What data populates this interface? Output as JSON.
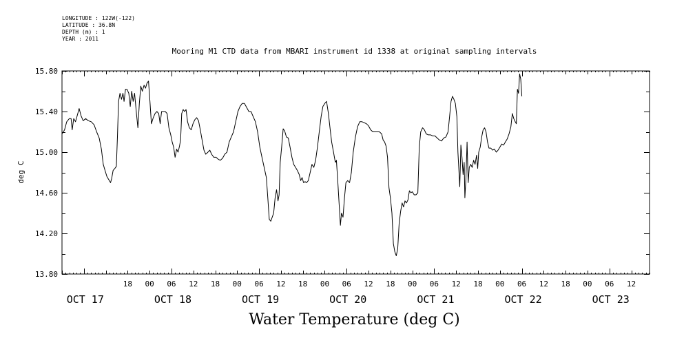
{
  "header": {
    "longitude": "LONGITUDE : 122W(-122)",
    "latitude": "LATITUDE : 36.8N",
    "depth": "DEPTH (m) : 1",
    "year": "YEAR : 2011"
  },
  "chart_data": {
    "type": "line",
    "title": "Mooring M1 CTD data from MBARI instrument id 1338 at original sampling intervals",
    "xlabel": "Water Temperature (deg C)",
    "ylabel": "deg C",
    "xlim_hours": [
      -6,
      155
    ],
    "ylim": [
      13.8,
      15.8
    ],
    "yticks": [
      13.8,
      14.2,
      14.6,
      15.0,
      15.4,
      15.8
    ],
    "yticklabels": [
      "13.80",
      "14.20",
      "14.60",
      "15.00",
      "15.40",
      "15.80"
    ],
    "hour_ticks": [
      {
        "h": 12,
        "label": "18"
      },
      {
        "h": 18,
        "label": "00"
      },
      {
        "h": 24,
        "label": "06"
      },
      {
        "h": 30,
        "label": "12"
      },
      {
        "h": 36,
        "label": "18"
      },
      {
        "h": 42,
        "label": "00"
      },
      {
        "h": 48,
        "label": "06"
      },
      {
        "h": 54,
        "label": "12"
      },
      {
        "h": 60,
        "label": "18"
      },
      {
        "h": 66,
        "label": "00"
      },
      {
        "h": 72,
        "label": "06"
      },
      {
        "h": 78,
        "label": "12"
      },
      {
        "h": 84,
        "label": "18"
      },
      {
        "h": 90,
        "label": "00"
      },
      {
        "h": 96,
        "label": "06"
      },
      {
        "h": 102,
        "label": "12"
      },
      {
        "h": 108,
        "label": "18"
      },
      {
        "h": 114,
        "label": "00"
      },
      {
        "h": 120,
        "label": "06"
      },
      {
        "h": 126,
        "label": "12"
      },
      {
        "h": 132,
        "label": "18"
      },
      {
        "h": 138,
        "label": "00"
      },
      {
        "h": 144,
        "label": "06"
      },
      {
        "h": 150,
        "label": "12"
      }
    ],
    "date_labels": [
      {
        "h": 0,
        "label": "OCT 17"
      },
      {
        "h": 24,
        "label": "OCT 18"
      },
      {
        "h": 48,
        "label": "OCT 19"
      },
      {
        "h": 72,
        "label": "OCT 20"
      },
      {
        "h": 96,
        "label": "OCT 21"
      },
      {
        "h": 120,
        "label": "OCT 22"
      },
      {
        "h": 144,
        "label": "OCT 23"
      }
    ],
    "series": [
      {
        "color": "#000000",
        "points": [
          [
            -6.0,
            15.18
          ],
          [
            -5.3,
            15.22
          ],
          [
            -4.7,
            15.3
          ],
          [
            -4.0,
            15.33
          ],
          [
            -3.5,
            15.33
          ],
          [
            -3.2,
            15.22
          ],
          [
            -2.8,
            15.33
          ],
          [
            -2.3,
            15.3
          ],
          [
            -1.9,
            15.35
          ],
          [
            -1.3,
            15.43
          ],
          [
            -0.8,
            15.36
          ],
          [
            -0.2,
            15.31
          ],
          [
            0.5,
            15.33
          ],
          [
            1.2,
            15.31
          ],
          [
            2.0,
            15.3
          ],
          [
            2.8,
            15.27
          ],
          [
            3.5,
            15.2
          ],
          [
            4.2,
            15.14
          ],
          [
            4.8,
            15.03
          ],
          [
            5.3,
            14.88
          ],
          [
            5.8,
            14.82
          ],
          [
            6.3,
            14.76
          ],
          [
            6.8,
            14.73
          ],
          [
            7.3,
            14.7
          ],
          [
            7.6,
            14.74
          ],
          [
            8.0,
            14.82
          ],
          [
            8.5,
            14.84
          ],
          [
            8.9,
            14.86
          ],
          [
            9.2,
            15.15
          ],
          [
            9.5,
            15.5
          ],
          [
            9.9,
            15.58
          ],
          [
            10.3,
            15.52
          ],
          [
            10.7,
            15.58
          ],
          [
            11.0,
            15.5
          ],
          [
            11.4,
            15.62
          ],
          [
            11.8,
            15.62
          ],
          [
            12.3,
            15.58
          ],
          [
            12.7,
            15.45
          ],
          [
            13.1,
            15.6
          ],
          [
            13.5,
            15.5
          ],
          [
            13.9,
            15.58
          ],
          [
            14.4,
            15.38
          ],
          [
            14.8,
            15.24
          ],
          [
            15.2,
            15.48
          ],
          [
            15.6,
            15.65
          ],
          [
            16.0,
            15.6
          ],
          [
            16.5,
            15.66
          ],
          [
            16.9,
            15.63
          ],
          [
            17.3,
            15.68
          ],
          [
            17.7,
            15.7
          ],
          [
            18.1,
            15.5
          ],
          [
            18.5,
            15.28
          ],
          [
            19.0,
            15.34
          ],
          [
            19.5,
            15.38
          ],
          [
            20.0,
            15.4
          ],
          [
            20.5,
            15.38
          ],
          [
            20.9,
            15.28
          ],
          [
            21.3,
            15.4
          ],
          [
            21.8,
            15.4
          ],
          [
            22.3,
            15.4
          ],
          [
            22.8,
            15.38
          ],
          [
            23.3,
            15.24
          ],
          [
            23.8,
            15.17
          ],
          [
            24.2,
            15.1
          ],
          [
            24.6,
            15.05
          ],
          [
            25.0,
            14.95
          ],
          [
            25.4,
            15.03
          ],
          [
            25.8,
            15.0
          ],
          [
            26.2,
            15.06
          ],
          [
            26.5,
            15.12
          ],
          [
            26.8,
            15.38
          ],
          [
            27.2,
            15.42
          ],
          [
            27.6,
            15.4
          ],
          [
            28.0,
            15.42
          ],
          [
            28.4,
            15.3
          ],
          [
            28.9,
            15.24
          ],
          [
            29.4,
            15.22
          ],
          [
            29.9,
            15.28
          ],
          [
            30.4,
            15.32
          ],
          [
            30.9,
            15.34
          ],
          [
            31.4,
            15.31
          ],
          [
            31.9,
            15.22
          ],
          [
            32.4,
            15.12
          ],
          [
            32.9,
            15.02
          ],
          [
            33.4,
            14.98
          ],
          [
            34.0,
            15.0
          ],
          [
            34.5,
            15.02
          ],
          [
            35.0,
            14.98
          ],
          [
            35.6,
            14.95
          ],
          [
            36.2,
            14.95
          ],
          [
            36.8,
            14.93
          ],
          [
            37.4,
            14.92
          ],
          [
            38.0,
            14.94
          ],
          [
            38.6,
            14.98
          ],
          [
            39.2,
            15.0
          ],
          [
            39.8,
            15.1
          ],
          [
            40.4,
            15.15
          ],
          [
            41.0,
            15.2
          ],
          [
            41.6,
            15.3
          ],
          [
            42.2,
            15.4
          ],
          [
            42.8,
            15.45
          ],
          [
            43.4,
            15.48
          ],
          [
            44.0,
            15.48
          ],
          [
            44.6,
            15.44
          ],
          [
            45.2,
            15.4
          ],
          [
            45.8,
            15.4
          ],
          [
            46.4,
            15.35
          ],
          [
            47.0,
            15.3
          ],
          [
            47.6,
            15.2
          ],
          [
            48.2,
            15.05
          ],
          [
            48.8,
            14.95
          ],
          [
            49.4,
            14.85
          ],
          [
            50.0,
            14.75
          ],
          [
            50.4,
            14.55
          ],
          [
            50.8,
            14.34
          ],
          [
            51.2,
            14.32
          ],
          [
            51.6,
            14.36
          ],
          [
            52.0,
            14.4
          ],
          [
            52.4,
            14.55
          ],
          [
            52.8,
            14.63
          ],
          [
            53.2,
            14.52
          ],
          [
            53.5,
            14.58
          ],
          [
            53.8,
            14.9
          ],
          [
            54.2,
            15.05
          ],
          [
            54.6,
            15.23
          ],
          [
            55.0,
            15.21
          ],
          [
            55.5,
            15.15
          ],
          [
            56.0,
            15.14
          ],
          [
            56.5,
            15.05
          ],
          [
            57.0,
            14.95
          ],
          [
            57.5,
            14.88
          ],
          [
            58.0,
            14.85
          ],
          [
            58.5,
            14.82
          ],
          [
            59.0,
            14.78
          ],
          [
            59.4,
            14.72
          ],
          [
            59.8,
            14.75
          ],
          [
            60.2,
            14.7
          ],
          [
            60.6,
            14.71
          ],
          [
            61.0,
            14.7
          ],
          [
            61.5,
            14.72
          ],
          [
            62.0,
            14.8
          ],
          [
            62.5,
            14.88
          ],
          [
            63.0,
            14.85
          ],
          [
            63.5,
            14.92
          ],
          [
            64.0,
            15.05
          ],
          [
            64.5,
            15.2
          ],
          [
            65.0,
            15.35
          ],
          [
            65.5,
            15.45
          ],
          [
            66.0,
            15.48
          ],
          [
            66.5,
            15.5
          ],
          [
            67.0,
            15.38
          ],
          [
            67.4,
            15.25
          ],
          [
            67.9,
            15.1
          ],
          [
            68.4,
            15.0
          ],
          [
            68.9,
            14.9
          ],
          [
            69.2,
            14.92
          ],
          [
            69.6,
            14.7
          ],
          [
            70.0,
            14.45
          ],
          [
            70.3,
            14.28
          ],
          [
            70.6,
            14.4
          ],
          [
            71.0,
            14.36
          ],
          [
            71.4,
            14.55
          ],
          [
            71.8,
            14.7
          ],
          [
            72.3,
            14.72
          ],
          [
            72.8,
            14.7
          ],
          [
            73.3,
            14.8
          ],
          [
            73.8,
            15.0
          ],
          [
            74.4,
            15.15
          ],
          [
            75.0,
            15.25
          ],
          [
            75.6,
            15.3
          ],
          [
            76.2,
            15.3
          ],
          [
            76.8,
            15.29
          ],
          [
            77.4,
            15.28
          ],
          [
            78.0,
            15.26
          ],
          [
            78.6,
            15.22
          ],
          [
            79.2,
            15.2
          ],
          [
            79.8,
            15.2
          ],
          [
            80.4,
            15.2
          ],
          [
            81.0,
            15.2
          ],
          [
            81.6,
            15.18
          ],
          [
            82.0,
            15.12
          ],
          [
            82.4,
            15.1
          ],
          [
            82.8,
            15.06
          ],
          [
            83.2,
            14.95
          ],
          [
            83.6,
            14.65
          ],
          [
            84.0,
            14.55
          ],
          [
            84.4,
            14.4
          ],
          [
            84.8,
            14.1
          ],
          [
            85.2,
            14.02
          ],
          [
            85.6,
            13.98
          ],
          [
            86.0,
            14.05
          ],
          [
            86.4,
            14.3
          ],
          [
            86.8,
            14.42
          ],
          [
            87.2,
            14.5
          ],
          [
            87.6,
            14.46
          ],
          [
            88.0,
            14.52
          ],
          [
            88.4,
            14.5
          ],
          [
            88.8,
            14.53
          ],
          [
            89.2,
            14.62
          ],
          [
            89.6,
            14.6
          ],
          [
            90.0,
            14.61
          ],
          [
            90.5,
            14.58
          ],
          [
            91.0,
            14.58
          ],
          [
            91.5,
            14.6
          ],
          [
            91.9,
            15.05
          ],
          [
            92.3,
            15.2
          ],
          [
            92.8,
            15.24
          ],
          [
            93.3,
            15.22
          ],
          [
            93.8,
            15.18
          ],
          [
            94.4,
            15.17
          ],
          [
            95.0,
            15.17
          ],
          [
            95.6,
            15.16
          ],
          [
            96.2,
            15.16
          ],
          [
            96.8,
            15.14
          ],
          [
            97.4,
            15.12
          ],
          [
            98.0,
            15.11
          ],
          [
            98.6,
            15.14
          ],
          [
            99.2,
            15.15
          ],
          [
            99.8,
            15.2
          ],
          [
            100.2,
            15.35
          ],
          [
            100.6,
            15.5
          ],
          [
            101.0,
            15.55
          ],
          [
            101.4,
            15.52
          ],
          [
            101.8,
            15.48
          ],
          [
            102.2,
            15.35
          ],
          [
            102.5,
            15.0
          ],
          [
            102.8,
            14.8
          ],
          [
            103.0,
            14.66
          ],
          [
            103.3,
            15.07
          ],
          [
            103.6,
            14.95
          ],
          [
            103.9,
            14.78
          ],
          [
            104.2,
            14.9
          ],
          [
            104.4,
            14.55
          ],
          [
            104.7,
            14.75
          ],
          [
            105.0,
            15.1
          ],
          [
            105.3,
            14.7
          ],
          [
            105.6,
            14.85
          ],
          [
            106.0,
            14.88
          ],
          [
            106.4,
            14.85
          ],
          [
            106.8,
            14.92
          ],
          [
            107.2,
            14.88
          ],
          [
            107.6,
            14.97
          ],
          [
            107.9,
            14.84
          ],
          [
            108.2,
            15.0
          ],
          [
            108.6,
            15.05
          ],
          [
            109.0,
            15.15
          ],
          [
            109.4,
            15.22
          ],
          [
            109.8,
            15.24
          ],
          [
            110.2,
            15.2
          ],
          [
            110.6,
            15.1
          ],
          [
            111.0,
            15.04
          ],
          [
            111.5,
            15.04
          ],
          [
            112.0,
            15.02
          ],
          [
            112.5,
            15.03
          ],
          [
            113.0,
            15.0
          ],
          [
            113.5,
            15.02
          ],
          [
            114.0,
            15.05
          ],
          [
            114.5,
            15.08
          ],
          [
            115.0,
            15.07
          ],
          [
            115.5,
            15.1
          ],
          [
            116.0,
            15.13
          ],
          [
            116.5,
            15.18
          ],
          [
            117.0,
            15.25
          ],
          [
            117.4,
            15.38
          ],
          [
            117.8,
            15.33
          ],
          [
            118.2,
            15.3
          ],
          [
            118.5,
            15.28
          ],
          [
            118.8,
            15.62
          ],
          [
            119.1,
            15.58
          ],
          [
            119.4,
            15.77
          ],
          [
            119.7,
            15.72
          ],
          [
            120.0,
            15.55
          ]
        ]
      }
    ]
  }
}
